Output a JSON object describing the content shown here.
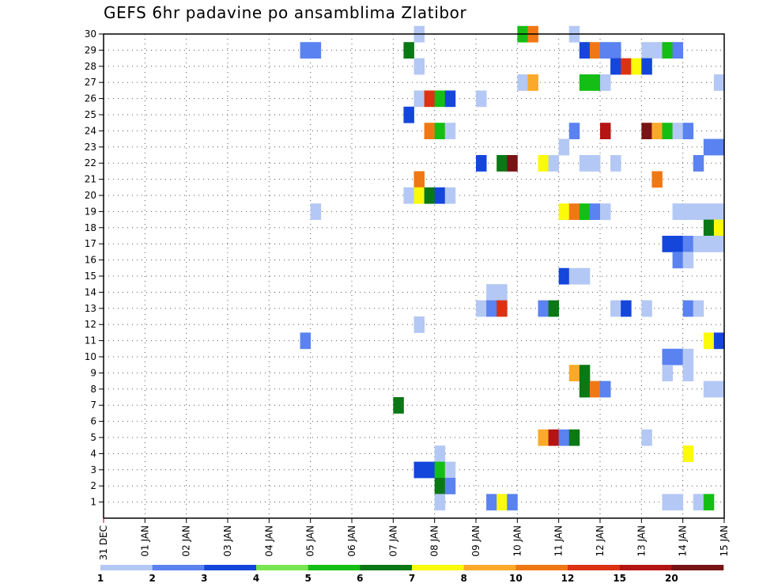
{
  "chart_data": {
    "type": "heatmap",
    "title": "GEFS 6hr padavine po ansamblima Zlatibor",
    "xlabel": "",
    "ylabel": "",
    "x_ticks": [
      "31 DEC",
      "01 JAN",
      "02 JAN",
      "03 JAN",
      "04 JAN",
      "05 JAN",
      "06 JAN",
      "07 JAN",
      "08 JAN",
      "09 JAN",
      "10 JAN",
      "11 JAN",
      "12 JAN",
      "13 JAN",
      "14 JAN",
      "15 JAN"
    ],
    "x_range_days": [
      0,
      15
    ],
    "time_step_days": 0.25,
    "y_ticks": [
      1,
      2,
      3,
      4,
      5,
      6,
      7,
      8,
      9,
      10,
      11,
      12,
      13,
      14,
      15,
      16,
      17,
      18,
      19,
      20,
      21,
      22,
      23,
      24,
      25,
      26,
      27,
      28,
      29,
      30
    ],
    "y_range": [
      0,
      30
    ],
    "grid": true,
    "colorbar": {
      "labels": [
        "1",
        "2",
        "3",
        "4",
        "5",
        "6",
        "7",
        "8",
        "10",
        "12",
        "15",
        "20"
      ],
      "colors": [
        "#b4c8f5",
        "#5a82f0",
        "#1446dc",
        "#78e650",
        "#14be14",
        "#0a7814",
        "#fafa0a",
        "#faaa28",
        "#f07814",
        "#dc3214",
        "#b41414",
        "#781414"
      ]
    },
    "cells": [
      {
        "member": 30,
        "steps": [
          [
            30,
            1
          ],
          [
            40,
            5
          ],
          [
            41,
            10
          ],
          [
            45,
            1
          ]
        ]
      },
      {
        "member": 29,
        "steps": [
          [
            19,
            2
          ],
          [
            20,
            2
          ],
          [
            29,
            6
          ],
          [
            46,
            3
          ],
          [
            47,
            10
          ],
          [
            48,
            2
          ],
          [
            49,
            2
          ],
          [
            52,
            1
          ],
          [
            53,
            1
          ],
          [
            54,
            5
          ],
          [
            55,
            2
          ]
        ]
      },
      {
        "member": 28,
        "steps": [
          [
            30,
            1
          ],
          [
            49,
            3
          ],
          [
            50,
            12
          ],
          [
            51,
            7
          ],
          [
            52,
            3
          ]
        ]
      },
      {
        "member": 27,
        "steps": [
          [
            40,
            1
          ],
          [
            41,
            8
          ],
          [
            46,
            5
          ],
          [
            47,
            5
          ],
          [
            48,
            1
          ],
          [
            59,
            1
          ]
        ]
      },
      {
        "member": 26,
        "steps": [
          [
            30,
            1
          ],
          [
            31,
            12
          ],
          [
            32,
            5
          ],
          [
            33,
            3
          ],
          [
            36,
            1
          ]
        ]
      },
      {
        "member": 25,
        "steps": [
          [
            29,
            3
          ]
        ]
      },
      {
        "member": 24,
        "steps": [
          [
            31,
            10
          ],
          [
            32,
            5
          ],
          [
            33,
            1
          ],
          [
            45,
            2
          ],
          [
            48,
            15
          ],
          [
            52,
            20
          ],
          [
            53,
            8
          ],
          [
            54,
            5
          ],
          [
            55,
            1
          ],
          [
            56,
            2
          ]
        ]
      },
      {
        "member": 23,
        "steps": [
          [
            44,
            1
          ],
          [
            58,
            2
          ],
          [
            59,
            2
          ]
        ]
      },
      {
        "member": 22,
        "steps": [
          [
            36,
            3
          ],
          [
            38,
            6
          ],
          [
            39,
            20
          ],
          [
            42,
            7
          ],
          [
            43,
            1
          ],
          [
            46,
            1
          ],
          [
            47,
            1
          ],
          [
            49,
            1
          ],
          [
            57,
            2
          ]
        ]
      },
      {
        "member": 21,
        "steps": [
          [
            30,
            10
          ],
          [
            53,
            10
          ]
        ]
      },
      {
        "member": 20,
        "steps": [
          [
            29,
            1
          ],
          [
            30,
            7
          ],
          [
            31,
            6
          ],
          [
            32,
            3
          ],
          [
            33,
            1
          ]
        ]
      },
      {
        "member": 19,
        "steps": [
          [
            20,
            1
          ],
          [
            44,
            7
          ],
          [
            45,
            10
          ],
          [
            46,
            5
          ],
          [
            47,
            2
          ],
          [
            48,
            1
          ],
          [
            55,
            1
          ],
          [
            56,
            1
          ],
          [
            57,
            1
          ],
          [
            58,
            1
          ],
          [
            59,
            1
          ]
        ]
      },
      {
        "member": 18,
        "steps": [
          [
            58,
            6
          ],
          [
            59,
            7
          ]
        ]
      },
      {
        "member": 17,
        "steps": [
          [
            54,
            3
          ],
          [
            55,
            3
          ],
          [
            56,
            2
          ],
          [
            57,
            1
          ],
          [
            58,
            1
          ],
          [
            59,
            1
          ]
        ]
      },
      {
        "member": 16,
        "steps": [
          [
            55,
            2
          ],
          [
            56,
            1
          ]
        ]
      },
      {
        "member": 15,
        "steps": [
          [
            44,
            3
          ],
          [
            45,
            1
          ],
          [
            46,
            1
          ]
        ]
      },
      {
        "member": 14,
        "steps": [
          [
            37,
            1
          ],
          [
            38,
            1
          ]
        ]
      },
      {
        "member": 13,
        "steps": [
          [
            36,
            1
          ],
          [
            37,
            2
          ],
          [
            38,
            12
          ],
          [
            42,
            2
          ],
          [
            43,
            6
          ],
          [
            49,
            1
          ],
          [
            50,
            3
          ],
          [
            52,
            1
          ],
          [
            56,
            2
          ],
          [
            57,
            1
          ]
        ]
      },
      {
        "member": 12,
        "steps": [
          [
            30,
            1
          ]
        ]
      },
      {
        "member": 11,
        "steps": [
          [
            19,
            2
          ],
          [
            58,
            7
          ],
          [
            59,
            3
          ]
        ]
      },
      {
        "member": 10,
        "steps": [
          [
            54,
            2
          ],
          [
            55,
            2
          ],
          [
            56,
            1
          ]
        ]
      },
      {
        "member": 9,
        "steps": [
          [
            45,
            8
          ],
          [
            46,
            6
          ],
          [
            54,
            1
          ],
          [
            56,
            1
          ]
        ]
      },
      {
        "member": 8,
        "steps": [
          [
            46,
            6
          ],
          [
            47,
            10
          ],
          [
            48,
            2
          ],
          [
            58,
            1
          ],
          [
            59,
            1
          ]
        ]
      },
      {
        "member": 7,
        "steps": [
          [
            28,
            6
          ]
        ]
      },
      {
        "member": 5,
        "steps": [
          [
            42,
            8
          ],
          [
            43,
            15
          ],
          [
            44,
            2
          ],
          [
            45,
            6
          ],
          [
            52,
            1
          ]
        ]
      },
      {
        "member": 4,
        "steps": [
          [
            32,
            1
          ],
          [
            56,
            7
          ]
        ]
      },
      {
        "member": 3,
        "steps": [
          [
            30,
            3
          ],
          [
            31,
            3
          ],
          [
            32,
            5
          ],
          [
            33,
            1
          ]
        ]
      },
      {
        "member": 2,
        "steps": [
          [
            32,
            6
          ],
          [
            33,
            2
          ]
        ]
      },
      {
        "member": 1,
        "steps": [
          [
            32,
            1
          ],
          [
            37,
            2
          ],
          [
            38,
            7
          ],
          [
            39,
            2
          ],
          [
            54,
            1
          ],
          [
            55,
            1
          ],
          [
            57,
            1
          ],
          [
            58,
            5
          ]
        ]
      }
    ]
  }
}
